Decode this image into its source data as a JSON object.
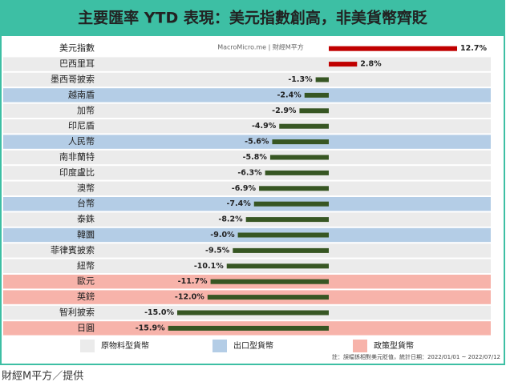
{
  "chart_data": {
    "type": "bar",
    "orientation": "horizontal",
    "title": "主要匯率 YTD 表現：美元指數創高，非美貨幣齊貶",
    "watermark": "MacroMicro.me | 財經M平方",
    "categories": [
      "美元指數",
      "巴西里耳",
      "墨西哥披索",
      "越南盾",
      "加幣",
      "印尼盾",
      "人民幣",
      "南非蘭特",
      "印度盧比",
      "澳幣",
      "台幣",
      "泰銖",
      "韓圜",
      "菲律賓披索",
      "紐幣",
      "歐元",
      "英鎊",
      "智利披索",
      "日圓"
    ],
    "values": [
      12.7,
      2.8,
      -1.3,
      -2.4,
      -2.9,
      -4.9,
      -5.6,
      -5.8,
      -6.3,
      -6.9,
      -7.4,
      -8.2,
      -9.0,
      -9.5,
      -10.1,
      -11.7,
      -12.0,
      -15.0,
      -15.9
    ],
    "value_labels": [
      "12.7%",
      "2.8%",
      "-1.3%",
      "-2.4%",
      "-2.9%",
      "-4.9%",
      "-5.6%",
      "-5.8%",
      "-6.3%",
      "-6.9%",
      "-7.4%",
      "-8.2%",
      "-9.0%",
      "-9.5%",
      "-10.1%",
      "-11.7%",
      "-12.0%",
      "-15.0%",
      "-15.9%"
    ],
    "positive_color": "#c00000",
    "negative_color": "#375623",
    "groups": [
      {
        "name": "原物料型貨幣",
        "color": "#ebebeb"
      },
      {
        "name": "出口型貨幣",
        "color": "#b4cde6"
      },
      {
        "name": "政策型貨幣",
        "color": "#f7b3aa"
      }
    ],
    "row_groups": [
      null,
      0,
      0,
      1,
      0,
      0,
      1,
      0,
      0,
      0,
      1,
      0,
      1,
      0,
      0,
      2,
      2,
      0,
      2
    ],
    "note": "註：誤幅係相對美元貶值，統計日期：2022/01/01 ~ 2022/07/12"
  },
  "caption": "財經M平方／提供"
}
